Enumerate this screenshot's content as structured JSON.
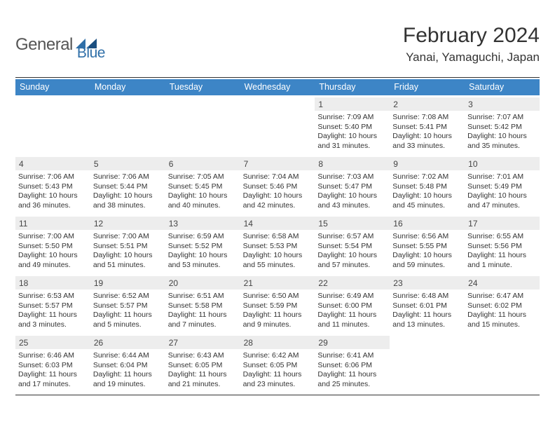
{
  "logo": {
    "part1": "General",
    "part2": "Blue"
  },
  "title": "February 2024",
  "location": "Yanai, Yamaguchi, Japan",
  "colors": {
    "header_bg": "#3d85c6",
    "header_text": "#ffffff",
    "daynum_bg": "#ededed",
    "text": "#333333",
    "rule": "#333333",
    "logo_gray": "#555555",
    "logo_blue": "#2f6fa8"
  },
  "dow": [
    "Sunday",
    "Monday",
    "Tuesday",
    "Wednesday",
    "Thursday",
    "Friday",
    "Saturday"
  ],
  "weeks": [
    [
      {
        "day": "",
        "lines": []
      },
      {
        "day": "",
        "lines": []
      },
      {
        "day": "",
        "lines": []
      },
      {
        "day": "",
        "lines": []
      },
      {
        "day": "1",
        "lines": [
          "Sunrise: 7:09 AM",
          "Sunset: 5:40 PM",
          "Daylight: 10 hours",
          "and 31 minutes."
        ]
      },
      {
        "day": "2",
        "lines": [
          "Sunrise: 7:08 AM",
          "Sunset: 5:41 PM",
          "Daylight: 10 hours",
          "and 33 minutes."
        ]
      },
      {
        "day": "3",
        "lines": [
          "Sunrise: 7:07 AM",
          "Sunset: 5:42 PM",
          "Daylight: 10 hours",
          "and 35 minutes."
        ]
      }
    ],
    [
      {
        "day": "4",
        "lines": [
          "Sunrise: 7:06 AM",
          "Sunset: 5:43 PM",
          "Daylight: 10 hours",
          "and 36 minutes."
        ]
      },
      {
        "day": "5",
        "lines": [
          "Sunrise: 7:06 AM",
          "Sunset: 5:44 PM",
          "Daylight: 10 hours",
          "and 38 minutes."
        ]
      },
      {
        "day": "6",
        "lines": [
          "Sunrise: 7:05 AM",
          "Sunset: 5:45 PM",
          "Daylight: 10 hours",
          "and 40 minutes."
        ]
      },
      {
        "day": "7",
        "lines": [
          "Sunrise: 7:04 AM",
          "Sunset: 5:46 PM",
          "Daylight: 10 hours",
          "and 42 minutes."
        ]
      },
      {
        "day": "8",
        "lines": [
          "Sunrise: 7:03 AM",
          "Sunset: 5:47 PM",
          "Daylight: 10 hours",
          "and 43 minutes."
        ]
      },
      {
        "day": "9",
        "lines": [
          "Sunrise: 7:02 AM",
          "Sunset: 5:48 PM",
          "Daylight: 10 hours",
          "and 45 minutes."
        ]
      },
      {
        "day": "10",
        "lines": [
          "Sunrise: 7:01 AM",
          "Sunset: 5:49 PM",
          "Daylight: 10 hours",
          "and 47 minutes."
        ]
      }
    ],
    [
      {
        "day": "11",
        "lines": [
          "Sunrise: 7:00 AM",
          "Sunset: 5:50 PM",
          "Daylight: 10 hours",
          "and 49 minutes."
        ]
      },
      {
        "day": "12",
        "lines": [
          "Sunrise: 7:00 AM",
          "Sunset: 5:51 PM",
          "Daylight: 10 hours",
          "and 51 minutes."
        ]
      },
      {
        "day": "13",
        "lines": [
          "Sunrise: 6:59 AM",
          "Sunset: 5:52 PM",
          "Daylight: 10 hours",
          "and 53 minutes."
        ]
      },
      {
        "day": "14",
        "lines": [
          "Sunrise: 6:58 AM",
          "Sunset: 5:53 PM",
          "Daylight: 10 hours",
          "and 55 minutes."
        ]
      },
      {
        "day": "15",
        "lines": [
          "Sunrise: 6:57 AM",
          "Sunset: 5:54 PM",
          "Daylight: 10 hours",
          "and 57 minutes."
        ]
      },
      {
        "day": "16",
        "lines": [
          "Sunrise: 6:56 AM",
          "Sunset: 5:55 PM",
          "Daylight: 10 hours",
          "and 59 minutes."
        ]
      },
      {
        "day": "17",
        "lines": [
          "Sunrise: 6:55 AM",
          "Sunset: 5:56 PM",
          "Daylight: 11 hours",
          "and 1 minute."
        ]
      }
    ],
    [
      {
        "day": "18",
        "lines": [
          "Sunrise: 6:53 AM",
          "Sunset: 5:57 PM",
          "Daylight: 11 hours",
          "and 3 minutes."
        ]
      },
      {
        "day": "19",
        "lines": [
          "Sunrise: 6:52 AM",
          "Sunset: 5:57 PM",
          "Daylight: 11 hours",
          "and 5 minutes."
        ]
      },
      {
        "day": "20",
        "lines": [
          "Sunrise: 6:51 AM",
          "Sunset: 5:58 PM",
          "Daylight: 11 hours",
          "and 7 minutes."
        ]
      },
      {
        "day": "21",
        "lines": [
          "Sunrise: 6:50 AM",
          "Sunset: 5:59 PM",
          "Daylight: 11 hours",
          "and 9 minutes."
        ]
      },
      {
        "day": "22",
        "lines": [
          "Sunrise: 6:49 AM",
          "Sunset: 6:00 PM",
          "Daylight: 11 hours",
          "and 11 minutes."
        ]
      },
      {
        "day": "23",
        "lines": [
          "Sunrise: 6:48 AM",
          "Sunset: 6:01 PM",
          "Daylight: 11 hours",
          "and 13 minutes."
        ]
      },
      {
        "day": "24",
        "lines": [
          "Sunrise: 6:47 AM",
          "Sunset: 6:02 PM",
          "Daylight: 11 hours",
          "and 15 minutes."
        ]
      }
    ],
    [
      {
        "day": "25",
        "lines": [
          "Sunrise: 6:46 AM",
          "Sunset: 6:03 PM",
          "Daylight: 11 hours",
          "and 17 minutes."
        ]
      },
      {
        "day": "26",
        "lines": [
          "Sunrise: 6:44 AM",
          "Sunset: 6:04 PM",
          "Daylight: 11 hours",
          "and 19 minutes."
        ]
      },
      {
        "day": "27",
        "lines": [
          "Sunrise: 6:43 AM",
          "Sunset: 6:05 PM",
          "Daylight: 11 hours",
          "and 21 minutes."
        ]
      },
      {
        "day": "28",
        "lines": [
          "Sunrise: 6:42 AM",
          "Sunset: 6:05 PM",
          "Daylight: 11 hours",
          "and 23 minutes."
        ]
      },
      {
        "day": "29",
        "lines": [
          "Sunrise: 6:41 AM",
          "Sunset: 6:06 PM",
          "Daylight: 11 hours",
          "and 25 minutes."
        ]
      },
      {
        "day": "",
        "lines": []
      },
      {
        "day": "",
        "lines": []
      }
    ]
  ]
}
